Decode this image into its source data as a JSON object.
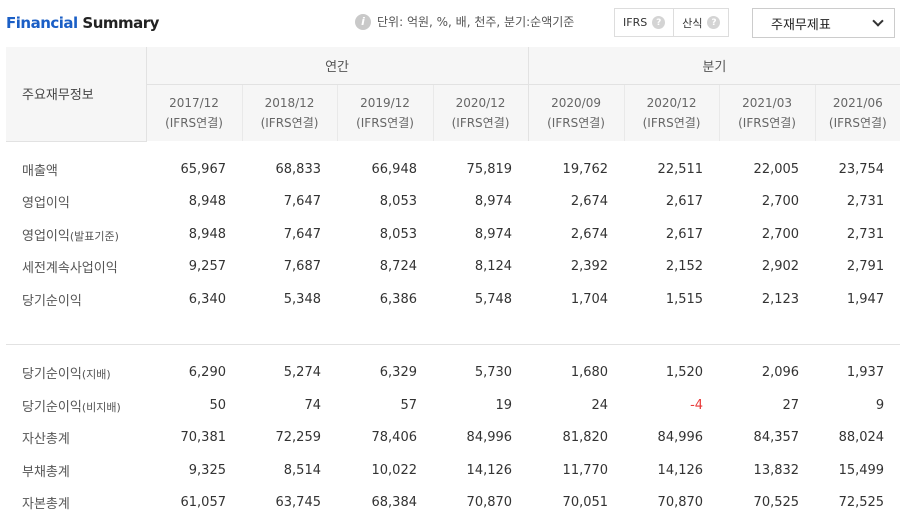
{
  "header": {
    "title_part1": "Financial",
    "title_part2": "Summary",
    "unit_note": "단위: 억원, %, 배, 천주, 분기:순액기준",
    "toggle": [
      {
        "label": "IFRS",
        "icon": "help-icon"
      },
      {
        "label": "산식",
        "icon": "help-icon"
      }
    ],
    "statement_select": "주재무제표"
  },
  "table": {
    "corner_label": "주요재무정보",
    "groups": {
      "annual": "연간",
      "quarterly": "분기"
    },
    "columns": [
      {
        "period": "2017/12",
        "basis": "(IFRS연결)"
      },
      {
        "period": "2018/12",
        "basis": "(IFRS연결)"
      },
      {
        "period": "2019/12",
        "basis": "(IFRS연결)"
      },
      {
        "period": "2020/12",
        "basis": "(IFRS연결)"
      },
      {
        "period": "2020/09",
        "basis": "(IFRS연결)"
      },
      {
        "period": "2020/12",
        "basis": "(IFRS연결)"
      },
      {
        "period": "2021/03",
        "basis": "(IFRS연결)"
      },
      {
        "period": "2021/06",
        "basis": "(IFRS연결)"
      }
    ],
    "section1": [
      {
        "label": "매출액",
        "sub": "",
        "values": [
          "65,967",
          "68,833",
          "66,948",
          "75,819",
          "19,762",
          "22,511",
          "22,005",
          "23,754"
        ]
      },
      {
        "label": "영업이익",
        "sub": "",
        "values": [
          "8,948",
          "7,647",
          "8,053",
          "8,974",
          "2,674",
          "2,617",
          "2,700",
          "2,731"
        ]
      },
      {
        "label": "영업이익",
        "sub": "(발표기준)",
        "values": [
          "8,948",
          "7,647",
          "8,053",
          "8,974",
          "2,674",
          "2,617",
          "2,700",
          "2,731"
        ]
      },
      {
        "label": "세전계속사업이익",
        "sub": "",
        "values": [
          "9,257",
          "7,687",
          "8,724",
          "8,124",
          "2,392",
          "2,152",
          "2,902",
          "2,791"
        ]
      },
      {
        "label": "당기순이익",
        "sub": "",
        "values": [
          "6,340",
          "5,348",
          "6,386",
          "5,748",
          "1,704",
          "1,515",
          "2,123",
          "1,947"
        ]
      }
    ],
    "section2": [
      {
        "label": "당기순이익",
        "sub": "(지배)",
        "values": [
          "6,290",
          "5,274",
          "6,329",
          "5,730",
          "1,680",
          "1,520",
          "2,096",
          "1,937"
        ]
      },
      {
        "label": "당기순이익",
        "sub": "(비지배)",
        "values": [
          "50",
          "74",
          "57",
          "19",
          "24",
          "-4",
          "27",
          "9"
        ]
      },
      {
        "label": "자산총계",
        "sub": "",
        "values": [
          "70,381",
          "72,259",
          "78,406",
          "84,996",
          "81,820",
          "84,996",
          "84,357",
          "88,024"
        ]
      },
      {
        "label": "부채총계",
        "sub": "",
        "values": [
          "9,325",
          "8,514",
          "10,022",
          "14,126",
          "11,770",
          "14,126",
          "13,832",
          "15,499"
        ]
      },
      {
        "label": "자본총계",
        "sub": "",
        "values": [
          "61,057",
          "63,745",
          "68,384",
          "70,870",
          "70,051",
          "70,870",
          "70,525",
          "72,525"
        ]
      }
    ]
  },
  "colors": {
    "title_accent": "#1b5fc6",
    "negative": "#e83a3a",
    "header_bg": "#f6f6f6"
  }
}
